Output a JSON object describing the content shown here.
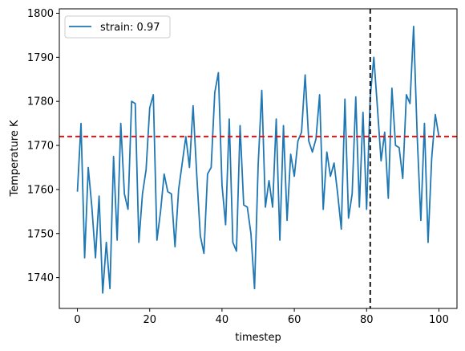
{
  "chart_data": {
    "type": "line",
    "title": "",
    "xlabel": "timestep",
    "ylabel": "Temperature K",
    "xlim": [
      -5,
      105
    ],
    "ylim": [
      1733,
      1801
    ],
    "xticks": [
      0,
      20,
      40,
      60,
      80,
      100
    ],
    "yticks": [
      1740,
      1750,
      1760,
      1770,
      1780,
      1790,
      1800
    ],
    "grid": false,
    "legend_position": "top-left",
    "series": [
      {
        "name": "strain: 0.97",
        "color": "#1f77b4",
        "x": [
          0,
          1,
          2,
          3,
          4,
          5,
          6,
          7,
          8,
          9,
          10,
          11,
          12,
          13,
          14,
          15,
          16,
          17,
          18,
          19,
          20,
          21,
          22,
          23,
          24,
          25,
          26,
          27,
          28,
          29,
          30,
          31,
          32,
          33,
          34,
          35,
          36,
          37,
          38,
          39,
          40,
          41,
          42,
          43,
          44,
          45,
          46,
          47,
          48,
          49,
          50,
          51,
          52,
          53,
          54,
          55,
          56,
          57,
          58,
          59,
          60,
          61,
          62,
          63,
          64,
          65,
          66,
          67,
          68,
          69,
          70,
          71,
          72,
          73,
          74,
          75,
          76,
          77,
          78,
          79,
          80,
          81,
          82,
          83,
          84,
          85,
          86,
          87,
          88,
          89,
          90,
          91,
          92,
          93,
          94,
          95,
          96,
          97,
          98,
          99,
          100
        ],
        "y": [
          1759.5,
          1775,
          1744.5,
          1765,
          1756,
          1744.5,
          1758.5,
          1736.5,
          1748,
          1737.5,
          1767.5,
          1748.5,
          1775,
          1759,
          1755.5,
          1780,
          1779.5,
          1748,
          1759,
          1764.5,
          1778.5,
          1781.5,
          1748.5,
          1755,
          1763.5,
          1759.5,
          1759,
          1747,
          1760,
          1766,
          1772,
          1765,
          1779,
          1763.5,
          1749.5,
          1745.5,
          1763.5,
          1765,
          1782,
          1786.5,
          1761,
          1752,
          1776,
          1748,
          1746,
          1774.5,
          1756.5,
          1756,
          1750,
          1737.5,
          1765.5,
          1782.5,
          1756,
          1762,
          1756,
          1776,
          1748.5,
          1774.5,
          1753,
          1768,
          1763,
          1771,
          1773,
          1786,
          1771,
          1768.5,
          1771.5,
          1781.5,
          1755.5,
          1768.5,
          1763,
          1766,
          1759,
          1751,
          1780.5,
          1753.5,
          1759,
          1781,
          1756,
          1777.5,
          1755.5,
          1781,
          1790,
          1778.5,
          1766.5,
          1773,
          1758,
          1783,
          1770,
          1769.5,
          1762.5,
          1781.5,
          1779.5,
          1797,
          1772,
          1753,
          1775,
          1748,
          1767,
          1777,
          1772
        ]
      }
    ],
    "reference_lines": [
      {
        "orientation": "horizontal",
        "value": 1772,
        "color": "#ff0000",
        "style": "dashed"
      },
      {
        "orientation": "vertical",
        "value": 81,
        "color": "#000000",
        "style": "dashed"
      }
    ]
  }
}
